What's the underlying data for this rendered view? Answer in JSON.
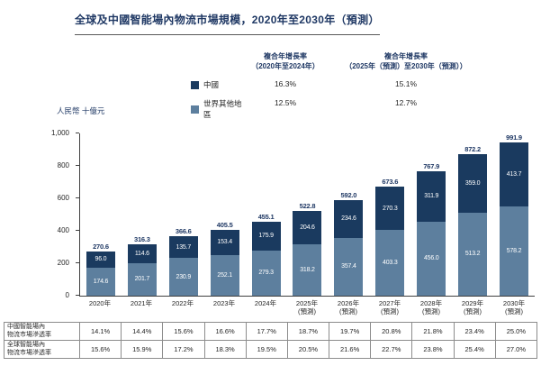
{
  "title": "全球及中國智能場內物流市場規模，2020年至2030年（預測）",
  "y_axis_unit": "人民幣 十億元",
  "colors": {
    "china": "#1a3a5f",
    "rest_of_world": "#5d7f9e",
    "accent_text": "#1f3864"
  },
  "legend": {
    "cagr_header_1": "複合年增長率",
    "cagr_period_1": "（2020年至2024年）",
    "cagr_header_2": "複合年增長率",
    "cagr_period_2": "（2025年（預測）至2030年（預測））",
    "series": [
      {
        "label": "中國",
        "color": "#1a3a5f",
        "cagr_1": "16.3%",
        "cagr_2": "15.1%"
      },
      {
        "label": "世界其他地區",
        "color": "#5d7f9e",
        "cagr_1": "12.5%",
        "cagr_2": "12.7%"
      }
    ]
  },
  "chart_data": {
    "type": "bar",
    "stacked": true,
    "title": "全球及中國智能場內物流市場規模，2020年至2030年（預測）",
    "ylabel": "人民幣 十億元",
    "ylim": [
      0,
      1000
    ],
    "yticks": [
      "0",
      "200",
      "400",
      "600",
      "800",
      "1,000"
    ],
    "grid": false,
    "legend_position": "top",
    "categories": [
      "2020年",
      "2021年",
      "2022年",
      "2023年",
      "2024年",
      "2025年\n(預測)",
      "2026年\n(預測)",
      "2027年\n(預測)",
      "2028年\n(預測)",
      "2029年\n(預測)",
      "2030年\n(預測)"
    ],
    "series": [
      {
        "name": "中國",
        "color": "#1a3a5f",
        "values": [
          96.0,
          114.6,
          135.7,
          153.4,
          175.9,
          204.6,
          234.6,
          270.3,
          311.9,
          359.0,
          413.7
        ]
      },
      {
        "name": "世界其他地區",
        "color": "#5d7f9e",
        "values": [
          174.6,
          201.7,
          230.9,
          252.1,
          279.3,
          318.2,
          357.4,
          403.3,
          456.0,
          513.2,
          578.2
        ]
      }
    ],
    "totals": [
      270.6,
      316.3,
      366.6,
      405.5,
      455.1,
      522.8,
      592.0,
      673.6,
      767.9,
      872.2,
      991.9
    ]
  },
  "table": {
    "rows": [
      {
        "label_line1": "中國智能場內",
        "label_line2": "物流市場滲透率",
        "values": [
          "14.1%",
          "14.4%",
          "15.6%",
          "16.6%",
          "17.7%",
          "18.7%",
          "19.7%",
          "20.8%",
          "21.8%",
          "23.4%",
          "25.0%"
        ]
      },
      {
        "label_line1": "全球智能場內",
        "label_line2": "物流市場滲透率",
        "values": [
          "15.6%",
          "15.9%",
          "17.2%",
          "18.3%",
          "19.5%",
          "20.5%",
          "21.6%",
          "22.7%",
          "23.8%",
          "25.4%",
          "27.0%"
        ]
      }
    ]
  }
}
